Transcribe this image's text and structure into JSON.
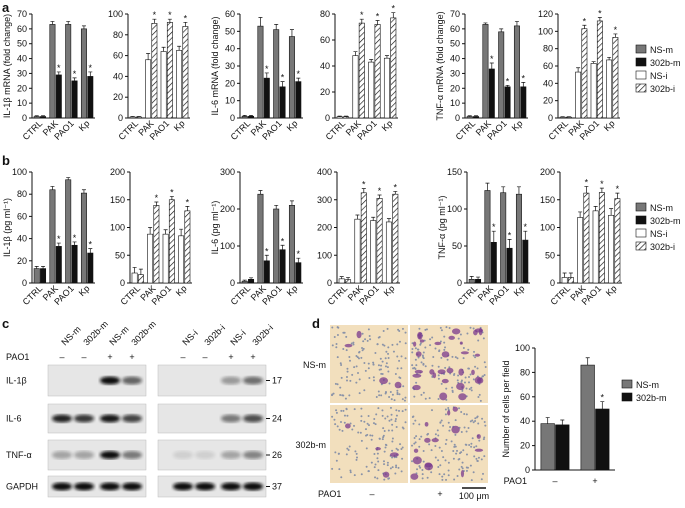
{
  "panel_labels": [
    "a",
    "b",
    "c",
    "d"
  ],
  "chart_data": [
    {
      "type": "bar",
      "ylabel": "IL-1β mRNA (fold change)",
      "categories": [
        "CTRL",
        "PAK",
        "PAO1",
        "Kp"
      ],
      "ylim": [
        0,
        70
      ],
      "yticks": [
        0,
        10,
        20,
        30,
        40,
        50,
        60,
        70
      ],
      "series": [
        {
          "name": "NS-m",
          "color": "#777777",
          "values": [
            1,
            63,
            63,
            60
          ],
          "errors": [
            0.5,
            2,
            2,
            2
          ],
          "markers": [
            null,
            null,
            null,
            null
          ]
        },
        {
          "name": "302b-m",
          "color": "#111111",
          "values": [
            1,
            29,
            25,
            28
          ],
          "errors": [
            0.5,
            2,
            2,
            3
          ],
          "markers": [
            null,
            "*",
            "*",
            "*"
          ]
        }
      ]
    },
    {
      "type": "bar",
      "categories": [
        "CTRL",
        "PAK",
        "PAO1",
        "Kp"
      ],
      "ylim": [
        0,
        100
      ],
      "yticks": [
        0,
        20,
        40,
        60,
        80,
        100
      ],
      "series": [
        {
          "name": "NS-i",
          "color": "#ffffff",
          "values": [
            1,
            56,
            64,
            65
          ],
          "errors": [
            0.5,
            6,
            4,
            4
          ],
          "markers": [
            null,
            null,
            null,
            null
          ]
        },
        {
          "name": "302b-i",
          "color": "#ffffff",
          "hatch": true,
          "values": [
            1,
            91,
            92,
            88
          ],
          "errors": [
            0.5,
            4,
            3,
            4
          ],
          "markers": [
            null,
            "*",
            "*",
            "*"
          ]
        }
      ]
    },
    {
      "type": "bar",
      "ylabel": "IL-6 mRNA (fold change)",
      "categories": [
        "CTRL",
        "PAK",
        "PAO1",
        "Kp"
      ],
      "ylim": [
        0,
        60
      ],
      "yticks": [
        0,
        10,
        20,
        30,
        40,
        50,
        60
      ],
      "series": [
        {
          "name": "NS-m",
          "color": "#777777",
          "values": [
            1,
            53,
            51,
            47
          ],
          "errors": [
            0.5,
            5,
            3,
            4
          ],
          "markers": [
            null,
            null,
            null,
            null
          ]
        },
        {
          "name": "302b-m",
          "color": "#111111",
          "values": [
            1,
            23,
            18,
            21
          ],
          "errors": [
            0.5,
            3,
            3,
            2
          ],
          "markers": [
            null,
            "*",
            "*",
            "*"
          ]
        }
      ]
    },
    {
      "type": "bar",
      "categories": [
        "CTRL",
        "PAK",
        "PAO1",
        "Kp"
      ],
      "ylim": [
        0,
        80
      ],
      "yticks": [
        0,
        20,
        40,
        60,
        80
      ],
      "series": [
        {
          "name": "NS-i",
          "color": "#ffffff",
          "values": [
            1,
            48,
            43,
            46
          ],
          "errors": [
            0.5,
            3,
            2,
            2
          ],
          "markers": [
            null,
            null,
            null,
            null
          ]
        },
        {
          "name": "302b-i",
          "color": "#ffffff",
          "hatch": true,
          "values": [
            1,
            73,
            72,
            77
          ],
          "errors": [
            0.5,
            3,
            3,
            4
          ],
          "markers": [
            null,
            "*",
            "*",
            "*"
          ]
        }
      ]
    },
    {
      "type": "bar",
      "ylabel": "TNF-α mRNA (fold change)",
      "categories": [
        "CTRL",
        "PAK",
        "PAO1",
        "Kp"
      ],
      "ylim": [
        0,
        70
      ],
      "yticks": [
        0,
        10,
        20,
        30,
        40,
        50,
        60,
        70
      ],
      "series": [
        {
          "name": "NS-m",
          "color": "#777777",
          "values": [
            1,
            63,
            58,
            62
          ],
          "errors": [
            0.5,
            1,
            2,
            3
          ],
          "markers": [
            null,
            null,
            null,
            null
          ]
        },
        {
          "name": "302b-m",
          "color": "#111111",
          "values": [
            1,
            33,
            21,
            21
          ],
          "errors": [
            0.5,
            4,
            1,
            3
          ],
          "markers": [
            null,
            "*",
            "*",
            "*"
          ]
        }
      ]
    },
    {
      "type": "bar",
      "categories": [
        "CTRL",
        "PAK",
        "PAO1",
        "Kp"
      ],
      "ylim": [
        0,
        120
      ],
      "yticks": [
        0,
        20,
        40,
        60,
        80,
        100,
        120
      ],
      "series": [
        {
          "name": "NS-i",
          "color": "#ffffff",
          "values": [
            1,
            53,
            63,
            67
          ],
          "errors": [
            0.5,
            5,
            2,
            3
          ],
          "markers": [
            null,
            null,
            null,
            null
          ]
        },
        {
          "name": "302b-i",
          "color": "#ffffff",
          "hatch": true,
          "values": [
            1,
            103,
            112,
            93
          ],
          "errors": [
            0.5,
            4,
            4,
            4
          ],
          "markers": [
            null,
            "*",
            "*",
            "*"
          ]
        }
      ]
    },
    {
      "type": "bar",
      "ylabel": "IL-1β (pg ml⁻¹)",
      "categories": [
        "CTRL",
        "PAK",
        "PAO1",
        "Kp"
      ],
      "ylim": [
        0,
        100
      ],
      "yticks": [
        0,
        20,
        40,
        60,
        80,
        100
      ],
      "series": [
        {
          "name": "NS-m",
          "color": "#777777",
          "values": [
            13,
            84,
            93,
            81
          ],
          "errors": [
            2,
            3,
            2,
            3
          ],
          "markers": [
            null,
            null,
            null,
            null
          ]
        },
        {
          "name": "302b-m",
          "color": "#111111",
          "values": [
            13,
            33,
            34,
            27
          ],
          "errors": [
            2,
            3,
            3,
            4
          ],
          "markers": [
            null,
            "*",
            "*",
            "*"
          ]
        }
      ]
    },
    {
      "type": "bar",
      "categories": [
        "CTRL",
        "PAK",
        "PAO1",
        "Kp"
      ],
      "ylim": [
        0,
        200
      ],
      "yticks": [
        0,
        50,
        100,
        150,
        200
      ],
      "series": [
        {
          "name": "NS-i",
          "color": "#ffffff",
          "values": [
            18,
            88,
            88,
            85
          ],
          "errors": [
            10,
            12,
            8,
            12
          ],
          "markers": [
            null,
            null,
            null,
            null
          ]
        },
        {
          "name": "302b-i",
          "color": "#ffffff",
          "hatch": true,
          "values": [
            15,
            140,
            150,
            130
          ],
          "errors": [
            10,
            6,
            6,
            8
          ],
          "markers": [
            null,
            "*",
            "*",
            "*"
          ]
        }
      ]
    },
    {
      "type": "bar",
      "ylabel": "IL-6 (pg ml⁻¹)",
      "categories": [
        "CTRL",
        "PAK",
        "PAO1",
        "Kp"
      ],
      "ylim": [
        0,
        300
      ],
      "yticks": [
        0,
        100,
        200,
        300
      ],
      "series": [
        {
          "name": "NS-m",
          "color": "#777777",
          "values": [
            5,
            240,
            200,
            210
          ],
          "errors": [
            3,
            10,
            10,
            12
          ],
          "markers": [
            null,
            null,
            null,
            null
          ]
        },
        {
          "name": "302b-m",
          "color": "#111111",
          "values": [
            10,
            60,
            90,
            55
          ],
          "errors": [
            4,
            15,
            12,
            12
          ],
          "markers": [
            null,
            "*",
            "*",
            "*"
          ]
        }
      ]
    },
    {
      "type": "bar",
      "categories": [
        "CTRL",
        "PAK",
        "PAO1",
        "Kp"
      ],
      "ylim": [
        0,
        400
      ],
      "yticks": [
        0,
        100,
        200,
        300,
        400
      ],
      "series": [
        {
          "name": "NS-i",
          "color": "#ffffff",
          "values": [
            15,
            230,
            225,
            220
          ],
          "errors": [
            8,
            15,
            12,
            12
          ],
          "markers": [
            null,
            null,
            null,
            null
          ]
        },
        {
          "name": "302b-i",
          "color": "#ffffff",
          "hatch": true,
          "values": [
            12,
            325,
            305,
            320
          ],
          "errors": [
            8,
            15,
            12,
            10
          ],
          "markers": [
            null,
            "*",
            "*",
            "*"
          ]
        }
      ]
    },
    {
      "type": "bar",
      "ylabel": "TNF-α (pg ml⁻¹)",
      "categories": [
        "CTRL",
        "PAK",
        "PAO1",
        "Kp"
      ],
      "ylim": [
        0,
        150
      ],
      "yticks": [
        0,
        50,
        100,
        150
      ],
      "series": [
        {
          "name": "NS-m",
          "color": "#777777",
          "values": [
            5,
            125,
            122,
            120
          ],
          "errors": [
            4,
            10,
            8,
            10
          ],
          "markers": [
            null,
            null,
            null,
            null
          ]
        },
        {
          "name": "302b-m",
          "color": "#111111",
          "values": [
            5,
            55,
            47,
            58
          ],
          "errors": [
            3,
            15,
            12,
            12
          ],
          "markers": [
            null,
            "*",
            "*",
            "*"
          ]
        }
      ]
    },
    {
      "type": "bar",
      "categories": [
        "CTRL",
        "PAK",
        "PAO1",
        "Kp"
      ],
      "ylim": [
        0,
        200
      ],
      "yticks": [
        0,
        50,
        100,
        150,
        200
      ],
      "series": [
        {
          "name": "NS-i",
          "color": "#ffffff",
          "values": [
            10,
            118,
            130,
            122
          ],
          "errors": [
            8,
            10,
            8,
            12
          ],
          "markers": [
            null,
            null,
            null,
            null
          ]
        },
        {
          "name": "302b-i",
          "color": "#ffffff",
          "hatch": true,
          "values": [
            10,
            162,
            163,
            152
          ],
          "errors": [
            8,
            12,
            8,
            10
          ],
          "markers": [
            null,
            "*",
            "*",
            "*"
          ]
        }
      ]
    },
    {
      "type": "bar",
      "ylabel": "Number of cells per field",
      "xlabel": "PAO1",
      "categories": [
        "–",
        "+"
      ],
      "ylim": [
        0,
        100
      ],
      "yticks": [
        0,
        20,
        40,
        60,
        80,
        100
      ],
      "series": [
        {
          "name": "NS-m",
          "color": "#777777",
          "values": [
            38,
            86
          ],
          "errors": [
            5,
            6
          ],
          "markers": [
            null,
            null
          ]
        },
        {
          "name": "302b-m",
          "color": "#111111",
          "values": [
            37,
            50
          ],
          "errors": [
            4,
            6
          ],
          "markers": [
            null,
            "*"
          ]
        }
      ]
    }
  ],
  "blot": {
    "treatment": "PAO1",
    "lanes": [
      "NS-m",
      "302b-m",
      "NS-m",
      "302b-m",
      "NS-i",
      "302b-i",
      "NS-i",
      "302b-i"
    ],
    "signs": [
      "–",
      "–",
      "+",
      "+",
      "–",
      "–",
      "+",
      "+"
    ],
    "rows": [
      {
        "label": "IL-1β",
        "size": "17"
      },
      {
        "label": "IL-6",
        "size": "24"
      },
      {
        "label": "TNF-α",
        "size": "26"
      },
      {
        "label": "GAPDH",
        "size": "37"
      }
    ]
  },
  "micrograph": {
    "rows": [
      "NS-m",
      "302b-m"
    ],
    "treatment": "PAO1",
    "signs": [
      "–",
      "+"
    ],
    "scale": "100 μm"
  }
}
